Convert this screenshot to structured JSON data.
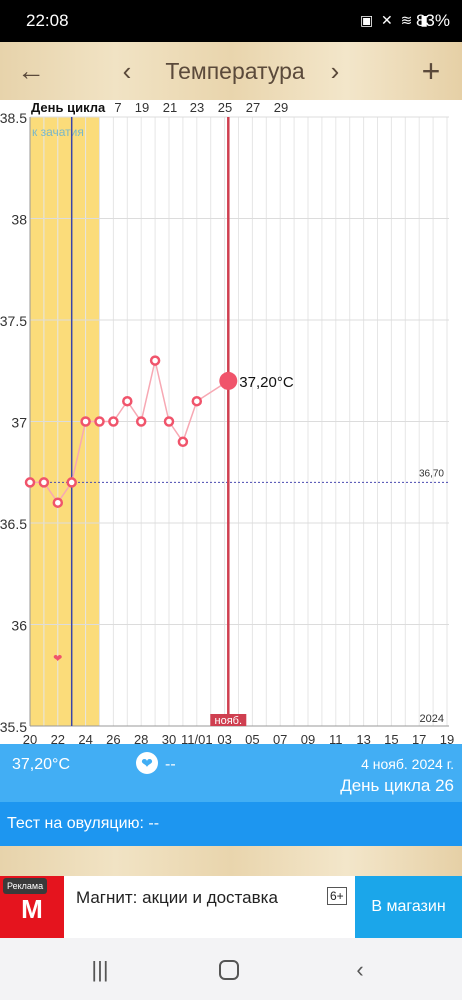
{
  "status": {
    "time": "22:08",
    "battery": "83%"
  },
  "appbar": {
    "title": "Температура"
  },
  "chart_data": {
    "type": "line",
    "title": "",
    "header_label": "День цикла",
    "fertile_label": "к зачатия",
    "y_ticks": [
      "38.5",
      "38",
      "37.5",
      "37",
      "36.5",
      "36",
      "35.5"
    ],
    "ylim": [
      35.5,
      38.5
    ],
    "top_ticks": [
      "7",
      "19",
      "21",
      "23",
      "25",
      "27",
      "29"
    ],
    "bottom_ticks": [
      "20",
      "22",
      "24",
      "26",
      "28",
      "30",
      "11/01",
      "03",
      "05",
      "07",
      "09",
      "11",
      "13",
      "15",
      "17",
      "19"
    ],
    "month_label": "нояб.",
    "year_label": "2024",
    "coverline": {
      "value": 36.7,
      "label": "36,70"
    },
    "current": {
      "value": 37.2,
      "label": "37,20°C"
    },
    "series": [
      {
        "values": [
          36.7,
          36.7,
          36.6,
          36.7,
          37.0,
          37.0,
          37.0,
          37.1,
          37.0,
          37.3,
          37.0,
          36.9,
          37.1,
          37.2
        ]
      }
    ],
    "colors": {
      "series": "#f0546b",
      "fertile": "#fbdc7a",
      "today_line": "#cf3f50",
      "ovulation_line": "#3a46a8",
      "coverline": "#4a4ab0"
    }
  },
  "info": {
    "temp": "37,20°C",
    "heart_value": "--",
    "date": "4 нояб. 2024 г.",
    "cycle": "День цикла 26"
  },
  "ovulation_test": "Тест на овуляцию: --",
  "ad": {
    "label": "Реклама",
    "logo": "М",
    "text": "Магнит: акции и доставка",
    "age": "6+",
    "cta": "В магазин"
  }
}
